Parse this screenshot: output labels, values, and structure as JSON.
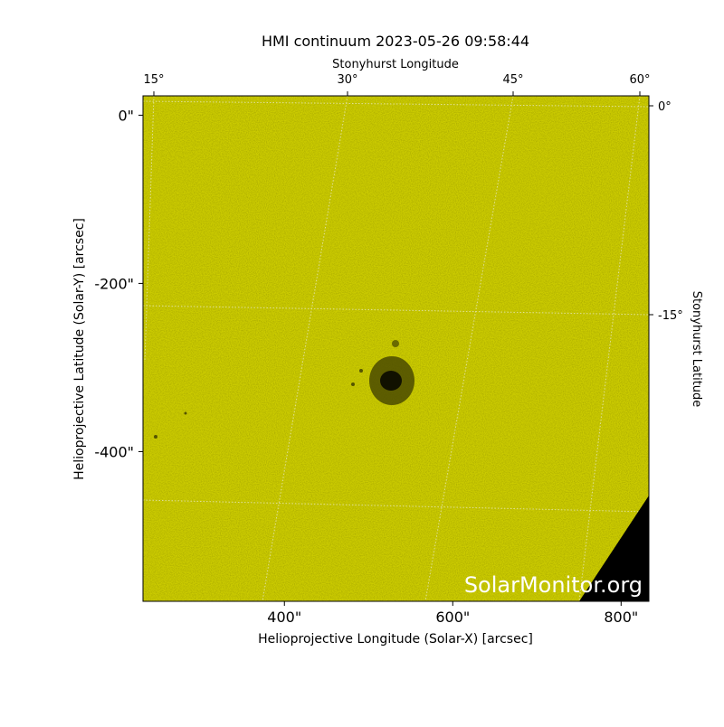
{
  "chart_data": {
    "type": "image",
    "title": "HMI continuum 2023-05-26 09:58:44",
    "xlabel": "Helioprojective Longitude (Solar-X) [arcsec]",
    "ylabel": "Helioprojective Latitude (Solar-Y) [arcsec]",
    "x2label": "Stonyhurst Longitude",
    "y2label": "Stonyhurst Latitude",
    "watermark": "SolarMonitor.org",
    "xlim": [
      232,
      833
    ],
    "ylim": [
      -578,
      23
    ],
    "xticks": [
      {
        "value": 400,
        "label": "400\""
      },
      {
        "value": 600,
        "label": "600\""
      },
      {
        "value": 800,
        "label": "800\""
      }
    ],
    "yticks": [
      {
        "value": 0,
        "label": "0\""
      },
      {
        "value": -200,
        "label": "-200\""
      },
      {
        "value": -400,
        "label": "-400\""
      }
    ],
    "x2ticks": [
      "15°",
      "30°",
      "45°",
      "60°"
    ],
    "y2ticks": [
      "0°",
      "-15°"
    ],
    "color": "#cccc00"
  }
}
